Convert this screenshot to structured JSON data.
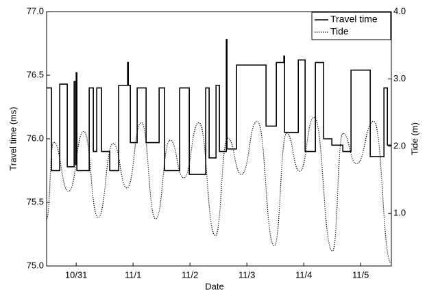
{
  "chart_data": {
    "type": "line",
    "xlabel": "Date",
    "ylabel": "Travel time (ms)",
    "y2label": "Tide (m)",
    "xlim": [
      -0.02,
      6.04
    ],
    "xticks": [
      {
        "value": 0.5,
        "label": "10/31"
      },
      {
        "value": 1.5,
        "label": "11/1"
      },
      {
        "value": 2.5,
        "label": "11/2"
      },
      {
        "value": 3.5,
        "label": "11/3"
      },
      {
        "value": 4.5,
        "label": "11/4"
      },
      {
        "value": 5.5,
        "label": "11/5"
      }
    ],
    "ylim": [
      75.0,
      77.0
    ],
    "yticks": [
      {
        "value": 75.0,
        "label": "75.0"
      },
      75.5,
      {
        "value": 76.0,
        "label": "76.0"
      },
      76.5,
      {
        "value": 77.0,
        "label": "77.0"
      }
    ],
    "y2lim": [
      0.22,
      4.0
    ],
    "y2ticks": [
      {
        "value": 1,
        "label": "1.0"
      },
      {
        "value": 2,
        "label": "2.0"
      },
      {
        "value": 3,
        "label": "3.0"
      },
      {
        "value": 4,
        "label": "4.0"
      }
    ],
    "legend": "upper right",
    "series": [
      {
        "name": "Travel time",
        "color": "#000000",
        "style": "solid",
        "step": true,
        "x": [
          -0.02,
          0.066,
          0.211,
          0.343,
          0.464,
          0.488,
          0.5,
          0.512,
          0.729,
          0.801,
          0.861,
          0.946,
          1.09,
          1.247,
          1.404,
          1.416,
          1.452,
          1.572,
          1.729,
          1.958,
          2.054,
          2.319,
          2.488,
          2.777,
          2.837,
          2.958,
          3.018,
          3.139,
          3.151,
          3.319,
          3.837,
          4.018,
          4.151,
          4.163,
          4.404,
          4.524,
          4.705,
          4.85,
          4.994,
          5.187,
          5.331,
          5.669,
          5.91,
          5.97,
          6.04
        ],
        "values": [
          76.4,
          75.75,
          76.43,
          75.78,
          76.45,
          75.8,
          76.52,
          75.75,
          76.4,
          75.9,
          76.4,
          75.9,
          75.75,
          76.42,
          76.6,
          76.42,
          75.97,
          76.4,
          75.97,
          76.4,
          75.75,
          76.4,
          75.72,
          76.4,
          75.85,
          76.42,
          75.9,
          76.78,
          75.92,
          76.58,
          76.1,
          76.6,
          76.65,
          76.05,
          76.62,
          75.9,
          76.6,
          76.0,
          75.95,
          75.9,
          76.54,
          75.86,
          76.4,
          75.95,
          75.95
        ]
      },
      {
        "name": "Tide",
        "color": "#000000",
        "style": "dotted",
        "axis": "y2",
        "x": [
          -0.02,
          0.102,
          0.367,
          0.633,
          0.886,
          1.151,
          1.392,
          1.645,
          1.898,
          2.151,
          2.392,
          2.657,
          2.946,
          3.163,
          3.404,
          3.681,
          3.982,
          4.199,
          4.428,
          4.681,
          5.006,
          5.187,
          5.428,
          5.729,
          6.04
        ],
        "values": [
          0.92,
          2.06,
          1.33,
          2.22,
          0.94,
          2.04,
          1.38,
          2.35,
          0.92,
          2.09,
          1.53,
          2.35,
          0.67,
          2.12,
          1.58,
          2.37,
          0.52,
          2.19,
          1.63,
          2.43,
          0.44,
          2.19,
          1.74,
          2.37,
          0.26
        ]
      }
    ]
  }
}
